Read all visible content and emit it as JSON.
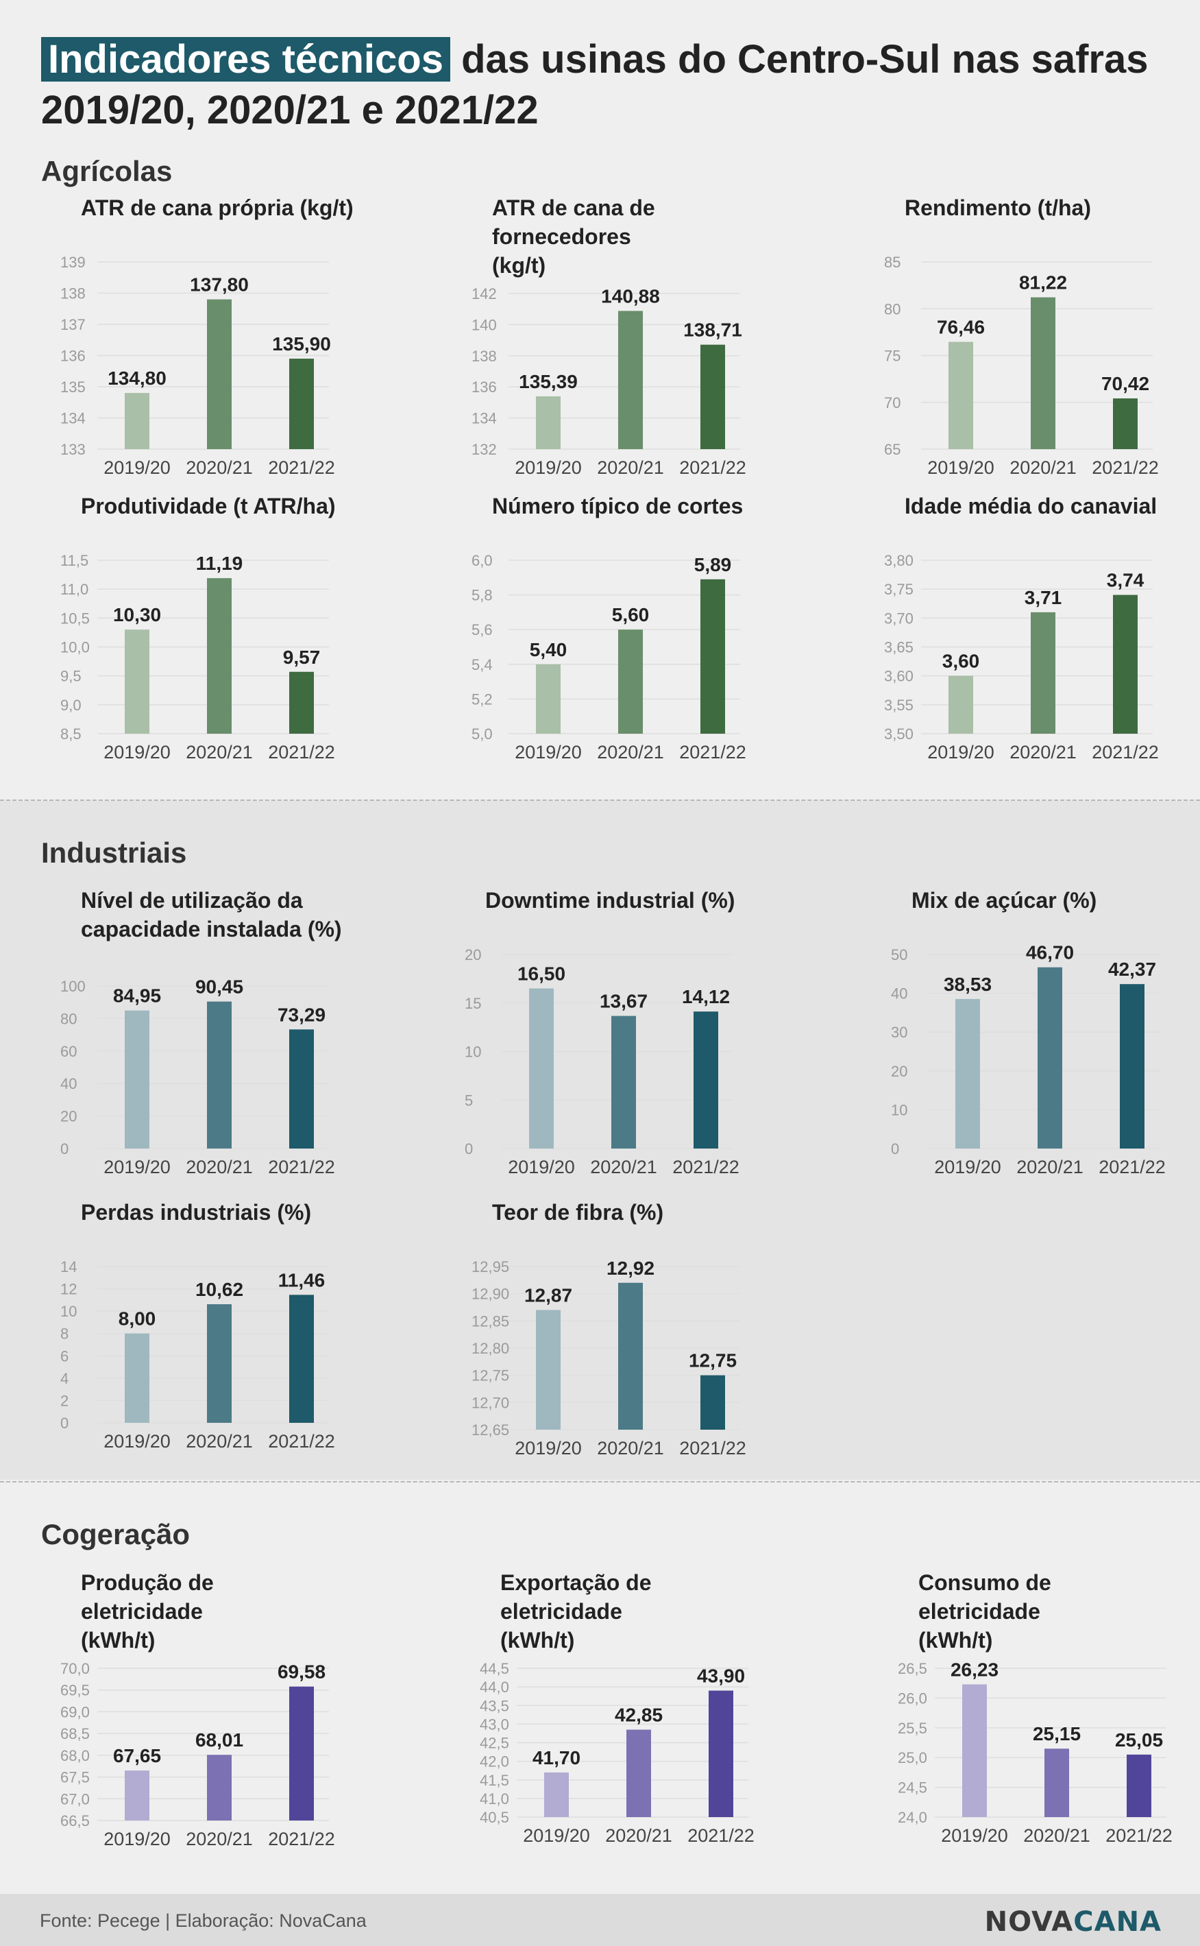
{
  "title": {
    "highlight": "Indicadores técnicos",
    "rest": "das usinas do Centro-Sul nas safras 2019/20, 2020/21 e 2021/22"
  },
  "sections": {
    "agricolas": "Agrícolas",
    "industriais": "Industriais",
    "cogeracao": "Cogeração"
  },
  "footer": {
    "source": "Fonte: Pecege | Elaboração: NovaCana",
    "logo_a": "NOVA",
    "logo_b": "CANA"
  },
  "palettes": {
    "green": [
      "#a9bfa7",
      "#698e6b",
      "#3f6b40"
    ],
    "teal": [
      "#9fb8c0",
      "#4d7a87",
      "#1e5a69"
    ],
    "purple": [
      "#b2acd3",
      "#7c71b2",
      "#514599"
    ]
  },
  "chart_data": [
    {
      "type": "bar",
      "title": "ATR de cana própria (kg/t)",
      "categories": [
        "2019/20",
        "2020/21",
        "2021/22"
      ],
      "values": [
        134.8,
        137.8,
        135.9
      ],
      "labels": [
        "134,80",
        "137,80",
        "135,90"
      ],
      "ylim": [
        133,
        139
      ],
      "ticks": [
        "133",
        "134",
        "135",
        "136",
        "137",
        "138",
        "139"
      ],
      "palette": "green"
    },
    {
      "type": "bar",
      "title": "ATR de cana de fornecedores (kg/t)",
      "categories": [
        "2019/20",
        "2020/21",
        "2021/22"
      ],
      "values": [
        135.39,
        140.88,
        138.71
      ],
      "labels": [
        "135,39",
        "140,88",
        "138,71"
      ],
      "ylim": [
        132,
        142
      ],
      "ticks": [
        "132",
        "134",
        "136",
        "138",
        "140",
        "142"
      ],
      "palette": "green"
    },
    {
      "type": "bar",
      "title": "Rendimento (t/ha)",
      "categories": [
        "2019/20",
        "2020/21",
        "2021/22"
      ],
      "values": [
        76.46,
        81.22,
        70.42
      ],
      "labels": [
        "76,46",
        "81,22",
        "70,42"
      ],
      "ylim": [
        65,
        85
      ],
      "ticks": [
        "65",
        "70",
        "75",
        "80",
        "85"
      ],
      "palette": "green"
    },
    {
      "type": "bar",
      "title": "Produtividade (t ATR/ha)",
      "categories": [
        "2019/20",
        "2020/21",
        "2021/22"
      ],
      "values": [
        10.3,
        11.19,
        9.57
      ],
      "labels": [
        "10,30",
        "11,19",
        "9,57"
      ],
      "ylim": [
        8.5,
        11.5
      ],
      "ticks": [
        "8,5",
        "9,0",
        "9,5",
        "10,0",
        "10,5",
        "11,0",
        "11,5"
      ],
      "palette": "green"
    },
    {
      "type": "bar",
      "title": "Número típico de cortes",
      "categories": [
        "2019/20",
        "2020/21",
        "2021/22"
      ],
      "values": [
        5.4,
        5.6,
        5.89
      ],
      "labels": [
        "5,40",
        "5,60",
        "5,89"
      ],
      "ylim": [
        5.0,
        6.0
      ],
      "ticks": [
        "5,0",
        "5,2",
        "5,4",
        "5,6",
        "5,8",
        "6,0"
      ],
      "palette": "green"
    },
    {
      "type": "bar",
      "title": "Idade média do canavial",
      "categories": [
        "2019/20",
        "2020/21",
        "2021/22"
      ],
      "values": [
        3.6,
        3.71,
        3.74
      ],
      "labels": [
        "3,60",
        "3,71",
        "3,74"
      ],
      "ylim": [
        3.5,
        3.8
      ],
      "ticks": [
        "3,50",
        "3,55",
        "3,60",
        "3,65",
        "3,70",
        "3,75",
        "3,80"
      ],
      "palette": "green"
    },
    {
      "type": "bar",
      "title": "Nível de utilização da capacidade instalada (%)",
      "categories": [
        "2019/20",
        "2020/21",
        "2021/22"
      ],
      "values": [
        84.95,
        90.45,
        73.29
      ],
      "labels": [
        "84,95",
        "90,45",
        "73,29"
      ],
      "ylim": [
        0,
        100
      ],
      "ticks": [
        "0",
        "20",
        "40",
        "60",
        "80",
        "100"
      ],
      "palette": "teal"
    },
    {
      "type": "bar",
      "title": "Downtime industrial (%)",
      "categories": [
        "2019/20",
        "2020/21",
        "2021/22"
      ],
      "values": [
        16.5,
        13.67,
        14.12
      ],
      "labels": [
        "16,50",
        "13,67",
        "14,12"
      ],
      "ylim": [
        0,
        20
      ],
      "ticks": [
        "0",
        "5",
        "10",
        "15",
        "20"
      ],
      "palette": "teal"
    },
    {
      "type": "bar",
      "title": "Mix de açúcar (%)",
      "categories": [
        "2019/20",
        "2020/21",
        "2021/22"
      ],
      "values": [
        38.53,
        46.7,
        42.37
      ],
      "labels": [
        "38,53",
        "46,70",
        "42,37"
      ],
      "ylim": [
        0,
        50
      ],
      "ticks": [
        "0",
        "10",
        "20",
        "30",
        "40",
        "50"
      ],
      "palette": "teal"
    },
    {
      "type": "bar",
      "title": "Perdas industriais (%)",
      "categories": [
        "2019/20",
        "2020/21",
        "2021/22"
      ],
      "values": [
        8.0,
        10.62,
        11.46
      ],
      "labels": [
        "8,00",
        "10,62",
        "11,46"
      ],
      "ylim": [
        0,
        14
      ],
      "ticks": [
        "0",
        "2",
        "4",
        "6",
        "8",
        "10",
        "12",
        "14"
      ],
      "palette": "teal"
    },
    {
      "type": "bar",
      "title": "Teor de fibra (%)",
      "categories": [
        "2019/20",
        "2020/21",
        "2021/22"
      ],
      "values": [
        12.87,
        12.92,
        12.75
      ],
      "labels": [
        "12,87",
        "12,92",
        "12,75"
      ],
      "ylim": [
        12.65,
        12.95
      ],
      "ticks": [
        "12,65",
        "12,70",
        "12,75",
        "12,80",
        "12,85",
        "12,90",
        "12,95"
      ],
      "palette": "teal"
    },
    {
      "type": "bar",
      "title": "Produção de eletricidade (kWh/t)",
      "categories": [
        "2019/20",
        "2020/21",
        "2021/22"
      ],
      "values": [
        67.65,
        68.01,
        69.58
      ],
      "labels": [
        "67,65",
        "68,01",
        "69,58"
      ],
      "ylim": [
        66.5,
        70.0
      ],
      "ticks": [
        "66,5",
        "67,0",
        "67,5",
        "68,0",
        "68,5",
        "69,0",
        "69,5",
        "70,0"
      ],
      "palette": "purple"
    },
    {
      "type": "bar",
      "title": "Exportação de eletricidade (kWh/t)",
      "categories": [
        "2019/20",
        "2020/21",
        "2021/22"
      ],
      "values": [
        41.7,
        42.85,
        43.9
      ],
      "labels": [
        "41,70",
        "42,85",
        "43,90"
      ],
      "ylim": [
        40.5,
        44.5
      ],
      "ticks": [
        "40,5",
        "41,0",
        "41,5",
        "42,0",
        "42,5",
        "43,0",
        "43,5",
        "44,0",
        "44,5"
      ],
      "palette": "purple"
    },
    {
      "type": "bar",
      "title": "Consumo de eletricidade (kWh/t)",
      "categories": [
        "2019/20",
        "2020/21",
        "2021/22"
      ],
      "values": [
        26.23,
        25.15,
        25.05
      ],
      "labels": [
        "26,23",
        "25,15",
        "25,05"
      ],
      "ylim": [
        24.0,
        26.5
      ],
      "ticks": [
        "24,0",
        "24,5",
        "25,0",
        "25,5",
        "26,0",
        "26,5"
      ],
      "palette": "purple"
    }
  ]
}
